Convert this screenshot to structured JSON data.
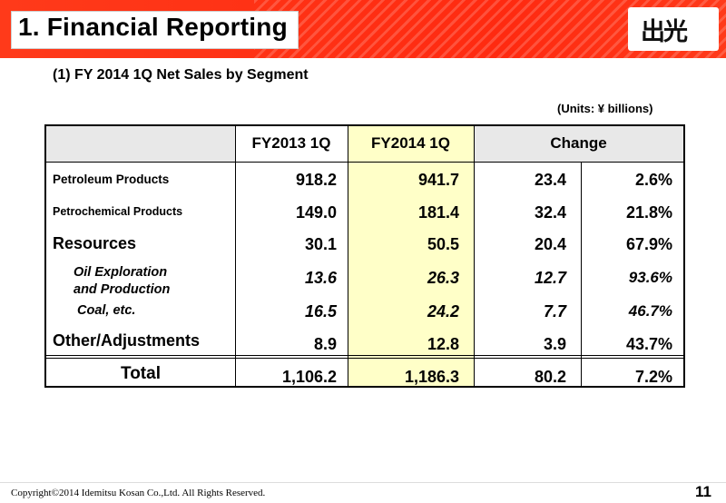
{
  "header": {
    "title": "1. Financial Reporting",
    "logo_text": "出光"
  },
  "subtitle": "(1) FY 2014 1Q Net Sales by Segment",
  "units": "(Units: ¥ billions)",
  "table": {
    "columns": [
      "FY2013 1Q",
      "FY2014 1Q",
      "Change"
    ],
    "rows": [
      {
        "label": "Petroleum Products",
        "fy2013": "918.2",
        "fy2014": "941.7",
        "change": "23.4",
        "pct": "2.6%"
      },
      {
        "label": "Petrochemical Products",
        "fy2013": "149.0",
        "fy2014": "181.4",
        "change": "32.4",
        "pct": "21.8%"
      },
      {
        "label": "Resources",
        "fy2013": "30.1",
        "fy2014": "50.5",
        "change": "20.4",
        "pct": "67.9%"
      },
      {
        "label": "Oil Exploration",
        "label2": "and Production",
        "fy2013": "13.6",
        "fy2014": "26.3",
        "change": "12.7",
        "pct": "93.6%"
      },
      {
        "label": "Coal, etc.",
        "fy2013": "16.5",
        "fy2014": "24.2",
        "change": "7.7",
        "pct": "46.7%"
      },
      {
        "label": "Other/Adjustments",
        "fy2013": "8.9",
        "fy2014": "12.8",
        "change": "3.9",
        "pct": "43.7%"
      }
    ],
    "total": {
      "label": "Total",
      "fy2013": "1,106.2",
      "fy2014": "1,186.3",
      "change": "80.2",
      "pct": "7.2%"
    }
  },
  "colors": {
    "header_red": "#ff2a10",
    "highlight": "#ffffc8",
    "header_gray": "#e8e8e8"
  },
  "footer": {
    "copyright": "Copyright©2014 Idemitsu Kosan Co.,Ltd. All Rights Reserved.",
    "page_number": "11"
  }
}
